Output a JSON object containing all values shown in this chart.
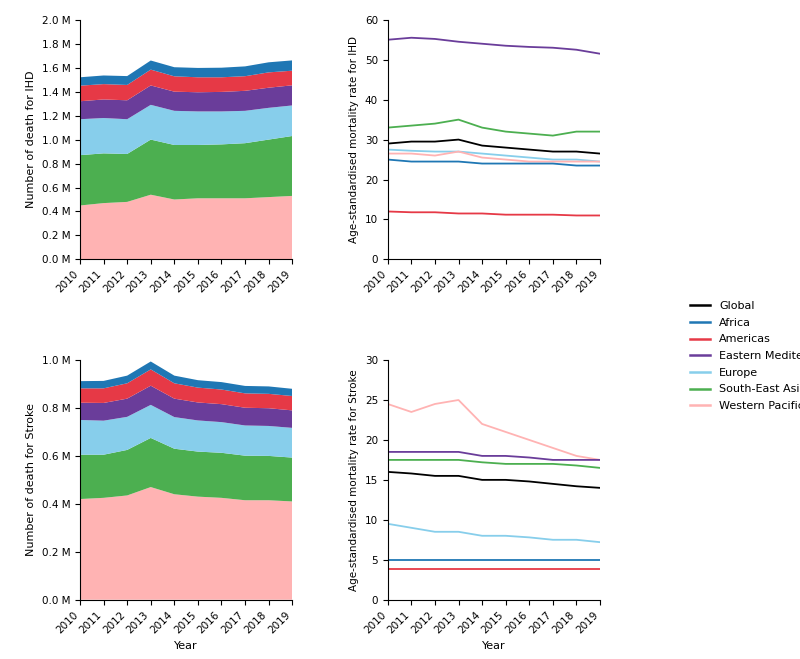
{
  "years": [
    2010,
    2011,
    2012,
    2013,
    2014,
    2015,
    2016,
    2017,
    2018,
    2019
  ],
  "ihd_stack_colors": [
    "#FFB3B3",
    "#4CAF50",
    "#87CEEB",
    "#6A3D9A",
    "#E63946",
    "#1F77B4"
  ],
  "ihd_stack_labels": [
    "Western Pacific",
    "South-East Asia",
    "Europe",
    "Eastern Mediterranean",
    "Americas",
    "Africa"
  ],
  "ihd_stack": {
    "Western Pacific": [
      450000,
      470000,
      480000,
      540000,
      500000,
      510000,
      510000,
      510000,
      520000,
      530000
    ],
    "South-East Asia": [
      420000,
      415000,
      400000,
      460000,
      455000,
      445000,
      450000,
      460000,
      480000,
      500000
    ],
    "Europe": [
      300000,
      295000,
      290000,
      290000,
      285000,
      280000,
      275000,
      270000,
      265000,
      255000
    ],
    "Eastern Mediterranean": [
      150000,
      155000,
      158000,
      162000,
      160000,
      160000,
      163000,
      167000,
      168000,
      168000
    ],
    "Americas": [
      130000,
      128000,
      128000,
      132000,
      128000,
      125000,
      122000,
      122000,
      128000,
      122000
    ],
    "Africa": [
      70000,
      72000,
      74000,
      76000,
      76000,
      78000,
      80000,
      82000,
      84000,
      86000
    ]
  },
  "ihd_rate_colors": [
    "#6A3D9A",
    "#4CAF50",
    "#000000",
    "#87CEEB",
    "#FFB3B3",
    "#1F77B4",
    "#E63946"
  ],
  "ihd_rate_labels": [
    "Eastern Mediterranean",
    "South-East Asia",
    "Global",
    "Europe",
    "Western Pacific",
    "Africa",
    "Americas"
  ],
  "ihd_rate": {
    "Eastern Mediterranean": [
      55.0,
      55.5,
      55.2,
      54.5,
      54.0,
      53.5,
      53.2,
      53.0,
      52.5,
      51.5
    ],
    "South-East Asia": [
      33.0,
      33.5,
      34.0,
      35.0,
      33.0,
      32.0,
      31.5,
      31.0,
      32.0,
      32.0
    ],
    "Global": [
      29.0,
      29.5,
      29.5,
      30.0,
      28.5,
      28.0,
      27.5,
      27.0,
      27.0,
      26.5
    ],
    "Europe": [
      27.5,
      27.2,
      27.0,
      27.0,
      26.5,
      26.0,
      25.5,
      25.0,
      25.0,
      24.5
    ],
    "Western Pacific": [
      26.5,
      26.5,
      26.0,
      27.0,
      25.5,
      25.0,
      24.5,
      24.5,
      24.5,
      24.5
    ],
    "Africa": [
      25.0,
      24.5,
      24.5,
      24.5,
      24.0,
      24.0,
      24.0,
      24.0,
      23.5,
      23.5
    ],
    "Americas": [
      12.0,
      11.8,
      11.8,
      11.5,
      11.5,
      11.2,
      11.2,
      11.2,
      11.0,
      11.0
    ]
  },
  "stroke_stack_colors": [
    "#FFB3B3",
    "#4CAF50",
    "#87CEEB",
    "#6A3D9A",
    "#E63946",
    "#1F77B4"
  ],
  "stroke_stack_labels": [
    "Western Pacific",
    "South-East Asia",
    "Europe",
    "Eastern Mediterranean",
    "Americas",
    "Africa"
  ],
  "stroke_stack": {
    "Western Pacific": [
      420000,
      425000,
      435000,
      470000,
      440000,
      430000,
      425000,
      415000,
      415000,
      410000
    ],
    "South-East Asia": [
      185000,
      180000,
      190000,
      205000,
      190000,
      188000,
      188000,
      186000,
      185000,
      183000
    ],
    "Europe": [
      145000,
      142000,
      138000,
      138000,
      132000,
      130000,
      128000,
      126000,
      125000,
      124000
    ],
    "Eastern Mediterranean": [
      72000,
      74000,
      76000,
      80000,
      77000,
      75000,
      75000,
      74000,
      74000,
      73000
    ],
    "Americas": [
      60000,
      61000,
      64000,
      68000,
      64000,
      62000,
      61000,
      60000,
      60000,
      60000
    ],
    "Africa": [
      30000,
      31000,
      32000,
      33000,
      32000,
      31000,
      31000,
      31000,
      31000,
      30000
    ]
  },
  "stroke_rate_colors": [
    "#FFB3B3",
    "#6A3D9A",
    "#4CAF50",
    "#000000",
    "#87CEEB",
    "#1F77B4",
    "#E63946"
  ],
  "stroke_rate_labels": [
    "Western Pacific",
    "Eastern Mediterranean",
    "South-East Asia",
    "Global",
    "Europe",
    "Africa",
    "Americas"
  ],
  "stroke_rate": {
    "Western Pacific": [
      24.5,
      23.5,
      24.5,
      25.0,
      22.0,
      21.0,
      20.0,
      19.0,
      18.0,
      17.5
    ],
    "Eastern Mediterranean": [
      18.5,
      18.5,
      18.5,
      18.5,
      18.0,
      18.0,
      17.8,
      17.5,
      17.5,
      17.5
    ],
    "South-East Asia": [
      17.5,
      17.5,
      17.5,
      17.5,
      17.2,
      17.0,
      17.0,
      17.0,
      16.8,
      16.5
    ],
    "Global": [
      16.0,
      15.8,
      15.5,
      15.5,
      15.0,
      15.0,
      14.8,
      14.5,
      14.2,
      14.0
    ],
    "Europe": [
      9.5,
      9.0,
      8.5,
      8.5,
      8.0,
      8.0,
      7.8,
      7.5,
      7.5,
      7.2
    ],
    "Africa": [
      5.0,
      5.0,
      5.0,
      5.0,
      5.0,
      5.0,
      5.0,
      5.0,
      5.0,
      5.0
    ],
    "Americas": [
      3.8,
      3.8,
      3.8,
      3.8,
      3.8,
      3.8,
      3.8,
      3.8,
      3.8,
      3.8
    ]
  },
  "ihd_ylim": [
    0,
    2000000
  ],
  "ihd_rate_ylim": [
    0,
    60
  ],
  "stroke_ylim": [
    0,
    1000000
  ],
  "stroke_rate_ylim": [
    0,
    30
  ],
  "legend_labels": [
    "Global",
    "Africa",
    "Americas",
    "Eastern Mediterranean",
    "Europe",
    "South-East Asia",
    "Western Pacific"
  ],
  "legend_colors": [
    "#000000",
    "#1F77B4",
    "#E63946",
    "#6A3D9A",
    "#87CEEB",
    "#4CAF50",
    "#FFB3B3"
  ]
}
